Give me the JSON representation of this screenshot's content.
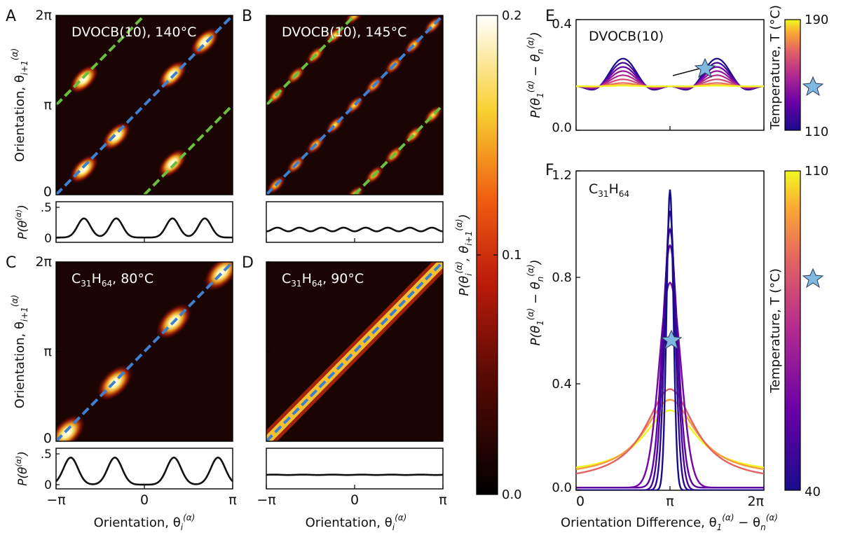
{
  "panel_letters": {
    "A": "A",
    "B": "B",
    "C": "C",
    "D": "D",
    "E": "E",
    "F": "F"
  },
  "axis_labels": {
    "heatmap_y": "Orientation, θ",
    "heatmap_y_sub": "i+1",
    "heatmap_y_sup": "(α)",
    "heatmap_x": "Orientation, θ",
    "heatmap_x_sub": "i",
    "heatmap_x_sup": "(α)",
    "marginal_y": "P(θ",
    "marginal_y_sup": "(α)",
    "marginal_y_end": ")",
    "colorbar": "P(θ",
    "diff_x": "Orientation Difference, θ",
    "diff_y": "P(θ",
    "temperature": "Temperature, T (°C)"
  },
  "tick_labels": {
    "angle_x": [
      "−π",
      "0",
      "π"
    ],
    "angle_y": [
      "0",
      "π",
      "2π"
    ],
    "marginal_y": [
      "0",
      ".5"
    ],
    "colorbar": [
      "0.0",
      "0.1",
      "0.2"
    ],
    "diff_x": [
      "0",
      "π",
      "2π"
    ],
    "E_y": [
      "0.0",
      "0.4"
    ],
    "F_y": [
      "0.0",
      "0.4",
      "0.8",
      "1.2"
    ],
    "E_temp": [
      "110",
      "190"
    ],
    "F_temp": [
      "40",
      "110"
    ]
  },
  "colors": {
    "diagonal_dashes": "#3f7fcf",
    "offset_dashes": "#6cbf3c",
    "star_fill": "#7fb8e0",
    "heatmap_background": "#1a0503"
  },
  "chart_data": [
    {
      "panel": "A",
      "type": "heatmap",
      "label": "DVOCB(10), 140°C",
      "xlabel": "Orientation, θ_i^(α)",
      "ylabel": "Orientation, θ_i+1^(α)",
      "xlim": [
        "−π",
        "π"
      ],
      "ylim": [
        "0",
        "2π"
      ],
      "peaks": [
        [
          -2.15,
          0.9
        ],
        [
          -1.0,
          2.05
        ],
        [
          1.0,
          4.2
        ],
        [
          2.15,
          5.35
        ],
        [
          -2.15,
          4.05
        ],
        [
          1.0,
          1.1
        ]
      ],
      "marginal": {
        "ylabel": "P(θ^(α))",
        "x": [
          -3.14,
          -2.7,
          -2.15,
          -1.6,
          -1.0,
          -0.5,
          0,
          0.5,
          1.0,
          1.6,
          2.15,
          2.7,
          3.14
        ],
        "y": [
          0.02,
          0.12,
          0.33,
          0.23,
          0.33,
          0.08,
          0.0,
          0.08,
          0.33,
          0.23,
          0.33,
          0.12,
          0.02
        ]
      }
    },
    {
      "panel": "B",
      "type": "heatmap",
      "label": "DVOCB(10), 145°C",
      "xlabel": "Orientation, θ_i^(α)",
      "ylabel": "Orientation, θ_i+1^(α)",
      "xlim": [
        "−π",
        "π"
      ],
      "ylim": [
        "0",
        "2π"
      ],
      "marginal": {
        "ylabel": "P(θ^(α))",
        "x": [
          -3.14,
          -2.36,
          -1.57,
          -0.79,
          0,
          0.79,
          1.57,
          2.36,
          3.14
        ],
        "y": [
          0.13,
          0.15,
          0.13,
          0.15,
          0.13,
          0.15,
          0.13,
          0.15,
          0.13
        ]
      }
    },
    {
      "panel": "C",
      "type": "heatmap",
      "label": "C31H64, 80°C",
      "xlabel": "Orientation, θ_i^(α)",
      "ylabel": "Orientation, θ_i+1^(α)",
      "xlim": [
        "−π",
        "π"
      ],
      "ylim": [
        "0",
        "2π"
      ],
      "peaks": [
        [
          -2.75,
          0.3
        ],
        [
          -1.05,
          2.05
        ],
        [
          1.05,
          4.2
        ],
        [
          2.75,
          5.9
        ]
      ],
      "marginal": {
        "ylabel": "P(θ^(α))",
        "x": [
          -3.14,
          -2.75,
          -1.9,
          -1.05,
          -0.5,
          0,
          0.5,
          1.05,
          1.9,
          2.75,
          3.14
        ],
        "y": [
          0.05,
          0.44,
          0.02,
          0.44,
          0.08,
          0.0,
          0.08,
          0.44,
          0.02,
          0.44,
          0.05
        ]
      }
    },
    {
      "panel": "D",
      "type": "heatmap",
      "label": "C31H64, 90°C",
      "xlabel": "Orientation, θ_i^(α)",
      "ylabel": "Orientation, θ_i+1^(α)",
      "xlim": [
        "−π",
        "π"
      ],
      "ylim": [
        "0",
        "2π"
      ],
      "marginal": {
        "ylabel": "P(θ^(α))",
        "x": [
          -3.14,
          3.14
        ],
        "y": [
          0.16,
          0.16
        ]
      }
    },
    {
      "panel": "E",
      "type": "line",
      "label": "DVOCB(10)",
      "xlabel": "Orientation Difference, θ_1^(α) − θ_n^(α)",
      "ylabel": "P(θ_1^(α) − θ_n^(α))",
      "xlim": [
        0,
        6.283
      ],
      "ylim": [
        0.0,
        0.4
      ],
      "colorbar": {
        "label": "Temperature, T (°C)",
        "range": [
          110,
          190
        ]
      },
      "series": [
        {
          "temperature": 110,
          "baseline": 0.159,
          "amplitude": 0.1
        },
        {
          "temperature": 120,
          "baseline": 0.159,
          "amplitude": 0.085
        },
        {
          "temperature": 130,
          "baseline": 0.159,
          "amplitude": 0.07
        },
        {
          "temperature": 140,
          "baseline": 0.159,
          "amplitude": 0.055
        },
        {
          "temperature": 150,
          "baseline": 0.159,
          "amplitude": 0.04
        },
        {
          "temperature": 160,
          "baseline": 0.159,
          "amplitude": 0.025
        },
        {
          "temperature": 170,
          "baseline": 0.159,
          "amplitude": 0.012
        },
        {
          "temperature": 180,
          "baseline": 0.159,
          "amplitude": 0.005
        },
        {
          "temperature": 190,
          "baseline": 0.159,
          "amplitude": 0.002
        }
      ]
    },
    {
      "panel": "F",
      "type": "line",
      "label": "C31H64",
      "xlabel": "Orientation Difference, θ_1^(α) − θ_n^(α)",
      "ylabel": "P(θ_1^(α) − θ_n^(α))",
      "xlim": [
        0,
        6.283
      ],
      "ylim": [
        0.0,
        1.2
      ],
      "colorbar": {
        "label": "Temperature, T (°C)",
        "range": [
          40,
          110
        ]
      },
      "series": [
        {
          "temperature": 40,
          "peak": 1.13,
          "base": 0.0
        },
        {
          "temperature": 45,
          "peak": 1.05,
          "base": 0.0
        },
        {
          "temperature": 50,
          "peak": 0.98,
          "base": 0.0
        },
        {
          "temperature": 55,
          "peak": 0.92,
          "base": 0.01
        },
        {
          "temperature": 60,
          "peak": 0.78,
          "base": 0.01
        },
        {
          "temperature": 90,
          "peak": 0.38,
          "base": 0.03
        },
        {
          "temperature": 100,
          "peak": 0.34,
          "base": 0.05
        },
        {
          "temperature": 110,
          "peak": 0.3,
          "base": 0.06
        }
      ]
    }
  ]
}
